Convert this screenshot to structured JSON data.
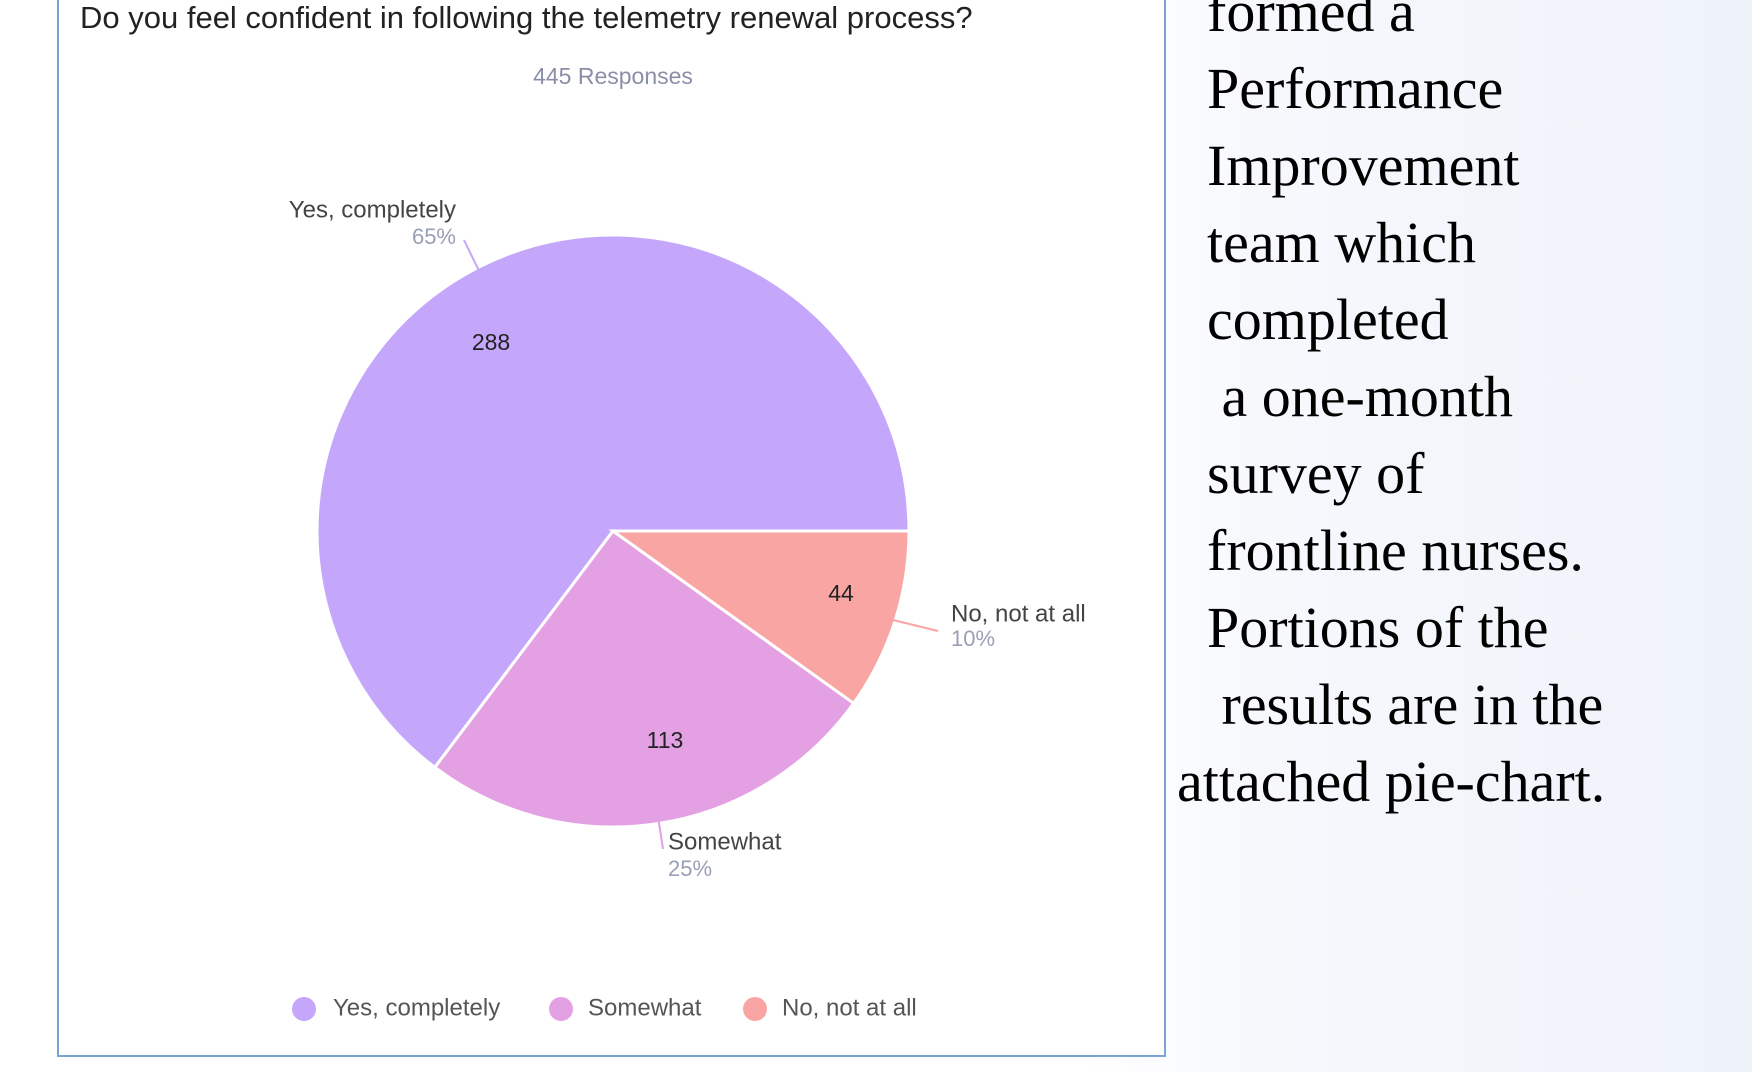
{
  "chart_data": {
    "type": "pie",
    "title": "Do you feel confident in following the telemetry renewal process?",
    "subtitle": "445 Responses",
    "categories": [
      "Yes, completely",
      "Somewhat",
      "No, not at all"
    ],
    "values": [
      288,
      113,
      44
    ],
    "shares": [
      65,
      25,
      10
    ],
    "share_labels": [
      "65%",
      "25%",
      "10%"
    ],
    "colors": [
      "#c4a7fb",
      "#e3a1e3",
      "#f9a5a3"
    ],
    "legend": "bottom"
  },
  "side_text": {
    "lines": [
      "formed a",
      "Performance",
      "Improvement",
      "team which",
      "completed",
      " a one-month",
      "survey of",
      "frontline nurses.",
      "Portions of the",
      " results are in the",
      "attached pie-chart."
    ]
  }
}
